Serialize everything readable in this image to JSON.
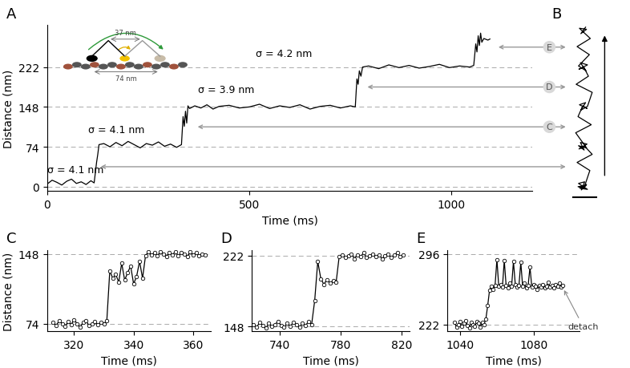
{
  "chart_data": [
    {
      "title": "A",
      "type": "line",
      "color": "#000000",
      "marker": "none",
      "line_style": "solid",
      "xlabel": "Time (ms)",
      "ylabel": "Distance (nm)",
      "x": [
        0,
        12,
        24,
        36,
        48,
        60,
        72,
        84,
        96,
        108,
        116,
        122,
        125,
        128,
        140,
        155,
        170,
        185,
        200,
        215,
        230,
        245,
        260,
        275,
        290,
        305,
        320,
        332,
        336,
        339,
        342,
        345,
        348,
        352,
        365,
        380,
        395,
        410,
        425,
        450,
        475,
        500,
        525,
        550,
        575,
        600,
        625,
        650,
        675,
        700,
        725,
        750,
        762,
        766,
        769,
        772,
        776,
        780,
        795,
        820,
        845,
        870,
        895,
        920,
        945,
        970,
        995,
        1020,
        1045,
        1055,
        1060,
        1063,
        1066,
        1069,
        1072,
        1075,
        1080,
        1090,
        1095
      ],
      "values": [
        5,
        12,
        8,
        3,
        10,
        14,
        6,
        9,
        4,
        11,
        7,
        45,
        60,
        78,
        80,
        74,
        82,
        76,
        84,
        78,
        72,
        80,
        77,
        83,
        75,
        79,
        73,
        78,
        130,
        112,
        140,
        118,
        150,
        145,
        150,
        146,
        152,
        144,
        149,
        151,
        146,
        148,
        153,
        145,
        150,
        147,
        152,
        144,
        149,
        151,
        146,
        150,
        148,
        200,
        190,
        215,
        205,
        222,
        224,
        219,
        226,
        221,
        225,
        220,
        223,
        227,
        221,
        224,
        222,
        225,
        265,
        250,
        280,
        262,
        285,
        268,
        275,
        272,
        274
      ],
      "xlim": [
        0,
        1200
      ],
      "ylim": [
        -8,
        300
      ],
      "xticks": [
        0,
        500,
        1000
      ],
      "yticks": [
        0,
        74,
        148,
        222
      ],
      "grid": true,
      "annotations": [
        "σ = 4.1 nm",
        "σ = 4.1 nm",
        "σ = 3.9 nm",
        "σ = 4.2 nm"
      ],
      "links": [
        "C",
        "D",
        "E"
      ],
      "inset_labels": [
        "37 nm",
        "74 nm"
      ]
    },
    {
      "title": "B",
      "type": "line",
      "color": "#000000",
      "marker": "none",
      "line_style": "solid",
      "x": [
        0,
        8,
        -6,
        10,
        -9,
        4,
        -3,
        7,
        -10,
        2,
        15,
        -12,
        20,
        5,
        -8,
        9,
        -5,
        3,
        -9,
        8,
        -15,
        18,
        -10,
        0,
        9,
        -7,
        6,
        -4,
        10,
        20,
        -14,
        12,
        2,
        -8,
        10,
        -5,
        7,
        -9,
        14,
        -12,
        16,
        0,
        -7,
        8,
        -4,
        6
      ],
      "values": [
        0,
        4,
        -3,
        -5,
        6,
        9,
        -6,
        2,
        0,
        -4,
        30,
        45,
        60,
        74,
        70,
        79,
        82,
        68,
        76,
        72,
        100,
        115,
        130,
        150,
        145,
        152,
        156,
        142,
        149,
        175,
        190,
        205,
        222,
        218,
        226,
        230,
        215,
        224,
        245,
        260,
        275,
        288,
        294,
        292,
        284,
        296
      ],
      "xlim": [
        -40,
        40
      ],
      "ylim": [
        -8,
        300
      ],
      "tick_labels": false
    },
    {
      "title": "C",
      "type": "line",
      "color": "#000000",
      "marker": "circle",
      "line_style": "solid",
      "xlabel": "Time (ms)",
      "ylabel": "Distance (nm)",
      "x": [
        313,
        314,
        315,
        316,
        317,
        318,
        319,
        320,
        321,
        322,
        323,
        324,
        325,
        326,
        327,
        328,
        329,
        330,
        331,
        332,
        333,
        334,
        335,
        336,
        337,
        338,
        339,
        340,
        341,
        342,
        343,
        344,
        345,
        346,
        347,
        348,
        349,
        350,
        351,
        352,
        353,
        354,
        355,
        356,
        357,
        358,
        359,
        360,
        361,
        362,
        363,
        364
      ],
      "values": [
        75,
        72,
        77,
        74,
        71,
        76,
        73,
        78,
        74,
        70,
        75,
        77,
        72,
        74,
        76,
        73,
        75,
        74,
        77,
        130,
        122,
        126,
        118,
        138,
        120,
        128,
        135,
        116,
        124,
        140,
        122,
        146,
        150,
        147,
        149,
        146,
        150,
        148,
        145,
        149,
        147,
        150,
        146,
        149,
        148,
        145,
        150,
        147,
        149,
        146,
        148,
        147
      ],
      "xlim": [
        311,
        366
      ],
      "ylim": [
        66,
        152
      ],
      "xticks": [
        320,
        340,
        360
      ],
      "yticks": [
        74,
        148
      ],
      "grid": true
    },
    {
      "title": "D",
      "type": "line",
      "color": "#000000",
      "marker": "circle",
      "line_style": "solid",
      "xlabel": "Time (ms)",
      "x": [
        723,
        725,
        727,
        729,
        731,
        733,
        735,
        737,
        739,
        741,
        743,
        745,
        747,
        749,
        751,
        753,
        755,
        757,
        759,
        761,
        763,
        765,
        767,
        769,
        771,
        773,
        775,
        777,
        779,
        781,
        783,
        785,
        787,
        789,
        791,
        793,
        795,
        797,
        799,
        801,
        803,
        805,
        807,
        809,
        811,
        813,
        815,
        817,
        819,
        821
      ],
      "values": [
        150,
        147,
        152,
        149,
        146,
        151,
        148,
        150,
        153,
        149,
        147,
        151,
        148,
        152,
        150,
        147,
        151,
        149,
        153,
        150,
        175,
        216,
        198,
        192,
        197,
        193,
        196,
        194,
        221,
        223,
        220,
        222,
        224,
        219,
        223,
        221,
        225,
        220,
        222,
        224,
        221,
        223,
        219,
        222,
        224,
        220,
        223,
        225,
        221,
        223
      ],
      "xlim": [
        722,
        825
      ],
      "ylim": [
        143,
        228
      ],
      "xticks": [
        740,
        780,
        820
      ],
      "yticks": [
        148,
        222
      ],
      "grid": true
    },
    {
      "title": "E",
      "type": "line",
      "color": "#000000",
      "marker": "circle",
      "line_style": "solid",
      "xlabel": "Time (ms)",
      "x": [
        1037,
        1038,
        1039,
        1040,
        1041,
        1042,
        1043,
        1044,
        1045,
        1046,
        1047,
        1048,
        1049,
        1050,
        1051,
        1052,
        1053,
        1054,
        1055,
        1056,
        1057,
        1058,
        1059,
        1060,
        1061,
        1062,
        1063,
        1064,
        1065,
        1066,
        1067,
        1068,
        1069,
        1070,
        1071,
        1072,
        1073,
        1074,
        1075,
        1076,
        1077,
        1078,
        1079,
        1080,
        1081,
        1082,
        1083,
        1084,
        1085,
        1086,
        1087,
        1088,
        1089,
        1090,
        1091,
        1092,
        1093,
        1094,
        1095,
        1096
      ],
      "values": [
        224,
        219,
        222,
        225,
        220,
        223,
        226,
        221,
        218,
        224,
        222,
        220,
        225,
        223,
        219,
        224,
        222,
        228,
        242,
        258,
        262,
        259,
        263,
        290,
        262,
        264,
        261,
        289,
        263,
        260,
        265,
        262,
        288,
        264,
        261,
        263,
        287,
        262,
        265,
        260,
        263,
        282,
        261,
        264,
        262,
        259,
        263,
        261,
        264,
        260,
        262,
        266,
        261,
        263,
        260,
        264,
        262,
        265,
        261,
        263
      ],
      "xlim": [
        1033,
        1105
      ],
      "ylim": [
        215,
        300
      ],
      "xticks": [
        1040,
        1080
      ],
      "yticks": [
        222,
        296
      ],
      "grid": true,
      "annotations": [
        "detach"
      ]
    }
  ]
}
